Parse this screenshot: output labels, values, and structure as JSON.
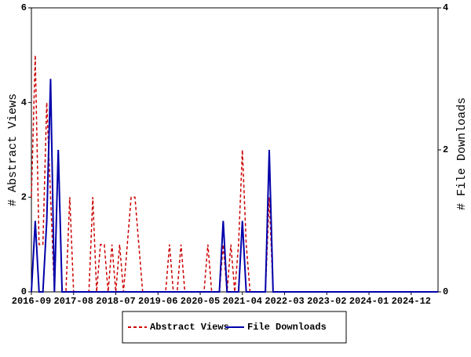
{
  "chart_data": {
    "type": "line",
    "y_label": "# Abstract Views",
    "y2_label": "# File Downloads",
    "categories": [
      "2016-09",
      null,
      null,
      null,
      null,
      null,
      null,
      null,
      null,
      null,
      null,
      "2017-08",
      null,
      null,
      null,
      null,
      null,
      null,
      null,
      null,
      null,
      null,
      "2018-07",
      null,
      null,
      null,
      null,
      null,
      null,
      null,
      null,
      null,
      null,
      "2019-06",
      null,
      null,
      null,
      null,
      null,
      null,
      null,
      null,
      null,
      null,
      "2020-05",
      null,
      null,
      null,
      null,
      null,
      null,
      null,
      null,
      null,
      null,
      "2021-04",
      null,
      null,
      null,
      null,
      null,
      null,
      null,
      null,
      null,
      null,
      "2022-03",
      null,
      null,
      null,
      null,
      null,
      null,
      null,
      null,
      null,
      null,
      "2023-02",
      null,
      null,
      null,
      null,
      null,
      null,
      null,
      null,
      null,
      null,
      "2024-01",
      null,
      null,
      null,
      null,
      null,
      null,
      null,
      null,
      null,
      null,
      "2024-12",
      null,
      null,
      null,
      null,
      null,
      null,
      null
    ],
    "series": [
      {
        "name": "Abstract Views",
        "color": "#cc0000",
        "dashed": true,
        "values": [
          2,
          5,
          1,
          1,
          4,
          2,
          0,
          3,
          0,
          0,
          2,
          0,
          0,
          0,
          0,
          0,
          2,
          0,
          1,
          1,
          0,
          1,
          0,
          1,
          0,
          1,
          2,
          2,
          1,
          0,
          0,
          0,
          0,
          0,
          0,
          0,
          1,
          0,
          0,
          1,
          0,
          0,
          0,
          0,
          0,
          0,
          1,
          0,
          0,
          0,
          1,
          0,
          1,
          0,
          1,
          3,
          1,
          0,
          0,
          0,
          0,
          0,
          2,
          0,
          0,
          0,
          0,
          0,
          0,
          0,
          0,
          0,
          0,
          0,
          0,
          0,
          0,
          0,
          0,
          0,
          0,
          0,
          0,
          0,
          0,
          0,
          0,
          0,
          0,
          0,
          0,
          0,
          0,
          0,
          0,
          0,
          0,
          0,
          0,
          0,
          0,
          0,
          0,
          0,
          0,
          0,
          0
        ]
      },
      {
        "name": "File Downloads",
        "color": "#0000aa",
        "dashed": false,
        "axis": "y2",
        "values": [
          0,
          1,
          0,
          0,
          1,
          3,
          0,
          2,
          0,
          0,
          0,
          0,
          0,
          0,
          0,
          0,
          0,
          0,
          0,
          0,
          0,
          0,
          0,
          0,
          0,
          0,
          0,
          0,
          0,
          0,
          0,
          0,
          0,
          0,
          0,
          0,
          0,
          0,
          0,
          0,
          0,
          0,
          0,
          0,
          0,
          0,
          0,
          0,
          0,
          0,
          1,
          0,
          0,
          0,
          0,
          1,
          0,
          0,
          0,
          0,
          0,
          0,
          2,
          0,
          0,
          0,
          0,
          0,
          0,
          0,
          0,
          0,
          0,
          0,
          0,
          0,
          0,
          0,
          0,
          0,
          0,
          0,
          0,
          0,
          0,
          0,
          0,
          0,
          0,
          0,
          0,
          0,
          0,
          0,
          0,
          0,
          0,
          0,
          0,
          0,
          0,
          0,
          0,
          0,
          0,
          0,
          0
        ]
      }
    ],
    "ylim": [
      0,
      6
    ],
    "yticks": [
      0,
      2,
      4,
      6
    ],
    "y2lim": [
      0,
      4
    ],
    "y2ticks": [
      0,
      2,
      4
    ]
  }
}
